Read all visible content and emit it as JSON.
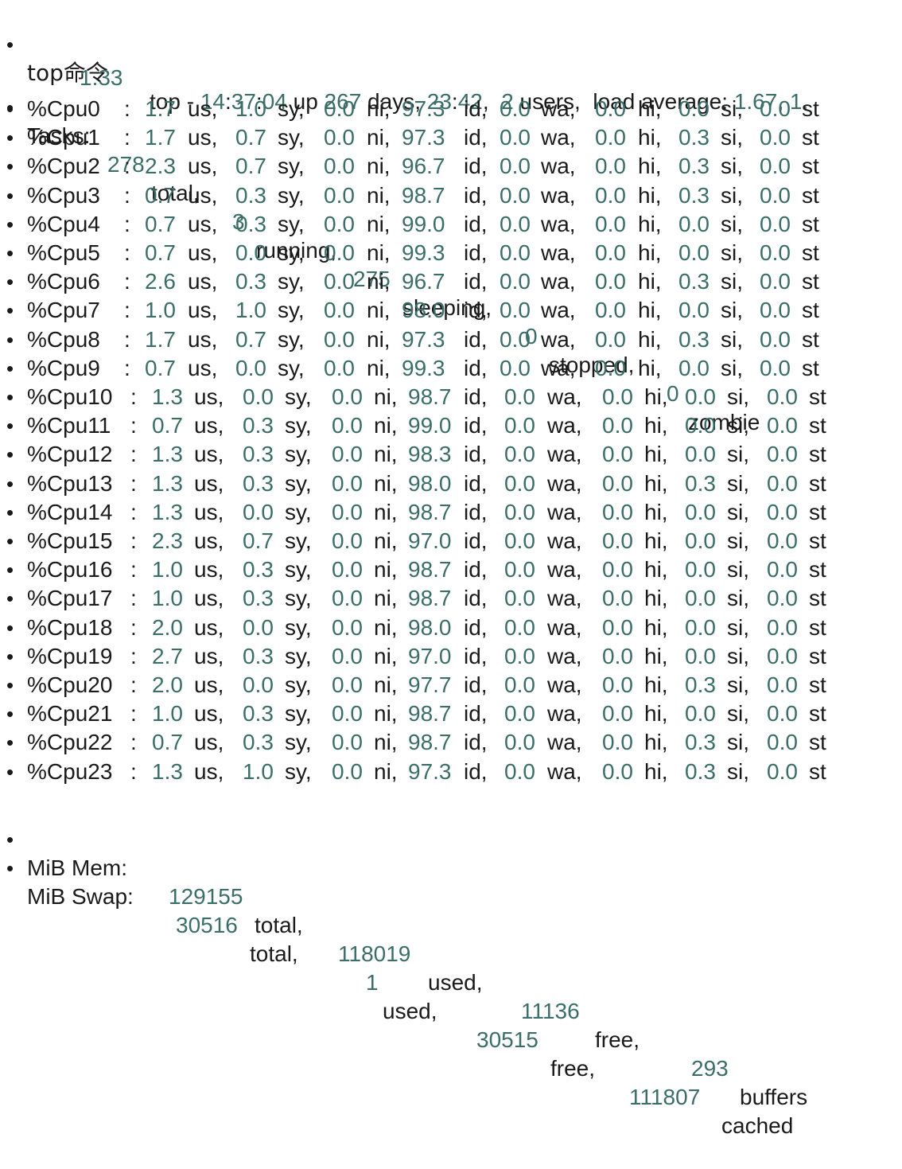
{
  "header": {
    "label": "top命令",
    "prefix": "top - ",
    "time_h": "14",
    "time_m": "37",
    "time_s": "04",
    "up_text": " up ",
    "up_days": "267",
    "days_text": " days, ",
    "up_h": "23",
    "up_m": "42",
    "users": "2",
    "users_text": " users,  load average: ",
    "load1": "1.67",
    "load1_sep": ", ",
    "load5_clipped": "1.",
    "load15": "1.33"
  },
  "tasks": {
    "label": "Tasks:",
    "total": "278",
    "total_label": "total,",
    "running": "3",
    "running_label": "running,",
    "sleeping": "275",
    "sleeping_label": "sleeping,",
    "stopped": "0",
    "stopped_label": "stopped,",
    "zombie": "0",
    "zombie_label": "zombie"
  },
  "cpu_labels": {
    "us": "us,",
    "sy": "sy,",
    "ni": "ni,",
    "id": "id,",
    "wa": "wa,",
    "hi": "hi,",
    "si": "si,",
    "st": "st"
  },
  "cpus": [
    {
      "name": "%Cpu0",
      "us": "1.7",
      "sy": "1.0",
      "ni": "0.0",
      "id": "97.3",
      "wa": "0.0",
      "hi": "0.0",
      "si": "0.0",
      "st": "0.0"
    },
    {
      "name": "%Cpu1",
      "us": "1.7",
      "sy": "0.7",
      "ni": "0.0",
      "id": "97.3",
      "wa": "0.0",
      "hi": "0.0",
      "si": "0.3",
      "st": "0.0"
    },
    {
      "name": "%Cpu2",
      "us": "2.3",
      "sy": "0.7",
      "ni": "0.0",
      "id": "96.7",
      "wa": "0.0",
      "hi": "0.0",
      "si": "0.3",
      "st": "0.0"
    },
    {
      "name": "%Cpu3",
      "us": "0.7",
      "sy": "0.3",
      "ni": "0.0",
      "id": "98.7",
      "wa": "0.0",
      "hi": "0.0",
      "si": "0.3",
      "st": "0.0"
    },
    {
      "name": "%Cpu4",
      "us": "0.7",
      "sy": "0.3",
      "ni": "0.0",
      "id": "99.0",
      "wa": "0.0",
      "hi": "0.0",
      "si": "0.0",
      "st": "0.0"
    },
    {
      "name": "%Cpu5",
      "us": "0.7",
      "sy": "0.0",
      "ni": "0.0",
      "id": "99.3",
      "wa": "0.0",
      "hi": "0.0",
      "si": "0.0",
      "st": "0.0"
    },
    {
      "name": "%Cpu6",
      "us": "2.6",
      "sy": "0.3",
      "ni": "0.0",
      "id": "96.7",
      "wa": "0.0",
      "hi": "0.0",
      "si": "0.3",
      "st": "0.0"
    },
    {
      "name": "%Cpu7",
      "us": "1.0",
      "sy": "1.0",
      "ni": "0.0",
      "id": "98.0",
      "wa": "0.0",
      "hi": "0.0",
      "si": "0.0",
      "st": "0.0"
    },
    {
      "name": "%Cpu8",
      "us": "1.7",
      "sy": "0.7",
      "ni": "0.0",
      "id": "97.3",
      "wa": "0.0",
      "hi": "0.0",
      "si": "0.3",
      "st": "0.0"
    },
    {
      "name": "%Cpu9",
      "us": "0.7",
      "sy": "0.0",
      "ni": "0.0",
      "id": "99.3",
      "wa": "0.0",
      "hi": "0.0",
      "si": "0.0",
      "st": "0.0"
    },
    {
      "name": "%Cpu10",
      "us": "1.3",
      "sy": "0.0",
      "ni": "0.0",
      "id": "98.7",
      "wa": "0.0",
      "hi": "0.0",
      "si": "0.0",
      "st": "0.0"
    },
    {
      "name": "%Cpu11",
      "us": "0.7",
      "sy": "0.3",
      "ni": "0.0",
      "id": "99.0",
      "wa": "0.0",
      "hi": "0.0",
      "si": "0.0",
      "st": "0.0"
    },
    {
      "name": "%Cpu12",
      "us": "1.3",
      "sy": "0.3",
      "ni": "0.0",
      "id": "98.3",
      "wa": "0.0",
      "hi": "0.0",
      "si": "0.0",
      "st": "0.0"
    },
    {
      "name": "%Cpu13",
      "us": "1.3",
      "sy": "0.3",
      "ni": "0.0",
      "id": "98.0",
      "wa": "0.0",
      "hi": "0.0",
      "si": "0.3",
      "st": "0.0"
    },
    {
      "name": "%Cpu14",
      "us": "1.3",
      "sy": "0.0",
      "ni": "0.0",
      "id": "98.7",
      "wa": "0.0",
      "hi": "0.0",
      "si": "0.0",
      "st": "0.0"
    },
    {
      "name": "%Cpu15",
      "us": "2.3",
      "sy": "0.7",
      "ni": "0.0",
      "id": "97.0",
      "wa": "0.0",
      "hi": "0.0",
      "si": "0.0",
      "st": "0.0"
    },
    {
      "name": "%Cpu16",
      "us": "1.0",
      "sy": "0.3",
      "ni": "0.0",
      "id": "98.7",
      "wa": "0.0",
      "hi": "0.0",
      "si": "0.0",
      "st": "0.0"
    },
    {
      "name": "%Cpu17",
      "us": "1.0",
      "sy": "0.3",
      "ni": "0.0",
      "id": "98.7",
      "wa": "0.0",
      "hi": "0.0",
      "si": "0.0",
      "st": "0.0"
    },
    {
      "name": "%Cpu18",
      "us": "2.0",
      "sy": "0.0",
      "ni": "0.0",
      "id": "98.0",
      "wa": "0.0",
      "hi": "0.0",
      "si": "0.0",
      "st": "0.0"
    },
    {
      "name": "%Cpu19",
      "us": "2.7",
      "sy": "0.3",
      "ni": "0.0",
      "id": "97.0",
      "wa": "0.0",
      "hi": "0.0",
      "si": "0.0",
      "st": "0.0"
    },
    {
      "name": "%Cpu20",
      "us": "2.0",
      "sy": "0.0",
      "ni": "0.0",
      "id": "97.7",
      "wa": "0.0",
      "hi": "0.0",
      "si": "0.3",
      "st": "0.0"
    },
    {
      "name": "%Cpu21",
      "us": "1.0",
      "sy": "0.3",
      "ni": "0.0",
      "id": "98.7",
      "wa": "0.0",
      "hi": "0.0",
      "si": "0.0",
      "st": "0.0"
    },
    {
      "name": "%Cpu22",
      "us": "0.7",
      "sy": "0.3",
      "ni": "0.0",
      "id": "98.7",
      "wa": "0.0",
      "hi": "0.0",
      "si": "0.3",
      "st": "0.0"
    },
    {
      "name": "%Cpu23",
      "us": "1.3",
      "sy": "1.0",
      "ni": "0.0",
      "id": "97.3",
      "wa": "0.0",
      "hi": "0.0",
      "si": "0.3",
      "st": "0.0"
    }
  ],
  "mem": {
    "label": "MiB Mem:",
    "total": "129155",
    "total_label": "total,",
    "used": "118019",
    "used_label": "used,",
    "free": "11136",
    "free_label": "free,",
    "buffers": "293",
    "buffers_label": "buffers"
  },
  "swap": {
    "label": "MiB Swap:",
    "total": "30516",
    "total_label": "total,",
    "used": "1",
    "used_label": "used,",
    "free": "30515",
    "free_label": "free,",
    "cached": "111807",
    "cached_label": "cached"
  },
  "colors": {
    "number": "#3b6e68",
    "text": "#1a1a1a",
    "background": "#ffffff"
  }
}
